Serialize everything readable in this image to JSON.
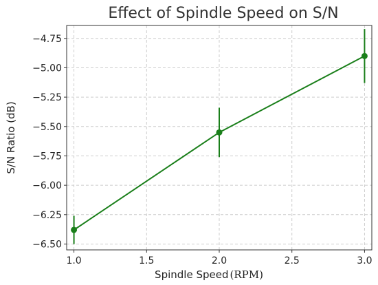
{
  "chart_data": {
    "type": "line",
    "title": "Effect of Spindle Speed on S/N",
    "xlabel": "Spindle Speed",
    "xlabel_unit": "(RPM)",
    "ylabel": "S/N Ratio (dB)",
    "xlim": [
      0.95,
      3.05
    ],
    "ylim": [
      -6.55,
      -4.64
    ],
    "x_ticks": [
      1.0,
      1.5,
      2.0,
      2.5,
      3.0
    ],
    "x_tick_labels": [
      "1.0",
      "1.5",
      "2.0",
      "2.5",
      "3.0"
    ],
    "y_ticks": [
      -4.75,
      -5.0,
      -5.25,
      -5.5,
      -5.75,
      -6.0,
      -6.25,
      -6.5
    ],
    "y_tick_labels": [
      "−4.75",
      "−5.00",
      "−5.25",
      "−5.50",
      "−5.75",
      "−6.00",
      "−6.25",
      "−6.50"
    ],
    "grid": true,
    "series": [
      {
        "x": [
          1.0,
          2.0,
          3.0
        ],
        "y": [
          -6.38,
          -5.55,
          -4.9
        ],
        "error": [
          0.12,
          0.21,
          0.23
        ],
        "color": "#1a7f1a"
      }
    ]
  }
}
